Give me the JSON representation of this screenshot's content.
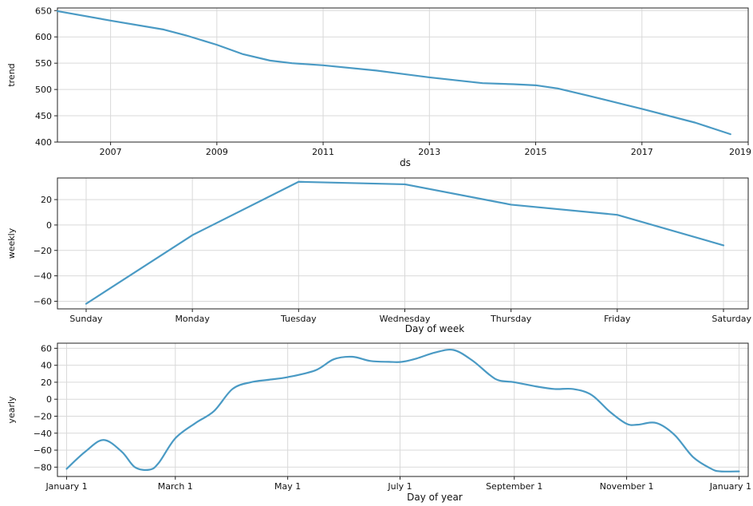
{
  "chart_data": [
    {
      "type": "line",
      "panel": "trend",
      "ylabel": "trend",
      "xlabel": "ds",
      "x_ticks": [
        "2007",
        "2009",
        "2011",
        "2013",
        "2015",
        "2017",
        "2019"
      ],
      "y_ticks": [
        "400",
        "450",
        "500",
        "550",
        "600",
        "650"
      ],
      "xlim": [
        "2006-01-01",
        "2019-01-01"
      ],
      "ylim": [
        400,
        655
      ],
      "grid": true,
      "color": "#4a9ac4",
      "x": [
        "2006-01-01",
        "2007-01-01",
        "2008-01-01",
        "2008-06-01",
        "2009-01-01",
        "2009-07-01",
        "2010-01-01",
        "2010-06-01",
        "2011-01-01",
        "2012-01-01",
        "2013-01-01",
        "2014-01-01",
        "2014-08-01",
        "2015-01-01",
        "2015-06-01",
        "2016-01-01",
        "2017-01-01",
        "2018-01-01",
        "2018-09-01"
      ],
      "y": [
        649,
        631,
        614,
        603,
        585,
        567,
        555,
        550,
        546,
        536,
        523,
        512,
        510,
        508,
        502,
        488,
        463,
        437,
        415
      ]
    },
    {
      "type": "line",
      "panel": "weekly",
      "ylabel": "weekly",
      "xlabel": "Day of week",
      "categories": [
        "Sunday",
        "Monday",
        "Tuesday",
        "Wednesday",
        "Thursday",
        "Friday",
        "Saturday"
      ],
      "values": [
        -62,
        -8,
        34,
        32,
        16,
        8,
        -16
      ],
      "y_ticks": [
        "−60",
        "−40",
        "−20",
        "0",
        "20"
      ],
      "ylim": [
        -66,
        37
      ],
      "grid": true,
      "color": "#4a9ac4"
    },
    {
      "type": "line",
      "panel": "yearly",
      "ylabel": "yearly",
      "xlabel": "Day of year",
      "x_ticks": [
        "January 1",
        "March 1",
        "May 1",
        "July 1",
        "September 1",
        "November 1",
        "January 1"
      ],
      "y_ticks": [
        "−80",
        "−60",
        "−40",
        "−20",
        "0",
        "20",
        "40",
        "60"
      ],
      "xlim": [
        -5,
        370
      ],
      "ylim": [
        -91,
        66
      ],
      "grid": true,
      "color": "#4a9ac4",
      "x": [
        0,
        10,
        20,
        30,
        37,
        45,
        50,
        59,
        70,
        80,
        90,
        100,
        110,
        120,
        135,
        145,
        155,
        165,
        175,
        182,
        190,
        200,
        210,
        220,
        230,
        235,
        243,
        255,
        265,
        275,
        285,
        295,
        304,
        310,
        320,
        330,
        340,
        350,
        355,
        365
      ],
      "y": [
        -82,
        -62,
        -48,
        -62,
        -80,
        -83,
        -75,
        -46,
        -28,
        -14,
        12,
        20,
        23,
        26,
        34,
        47,
        50,
        45,
        44,
        44,
        48,
        55,
        58,
        46,
        28,
        22,
        20,
        15,
        12,
        12,
        5,
        -15,
        -29,
        -30,
        -28,
        -42,
        -68,
        -82,
        -85,
        -85
      ]
    }
  ]
}
